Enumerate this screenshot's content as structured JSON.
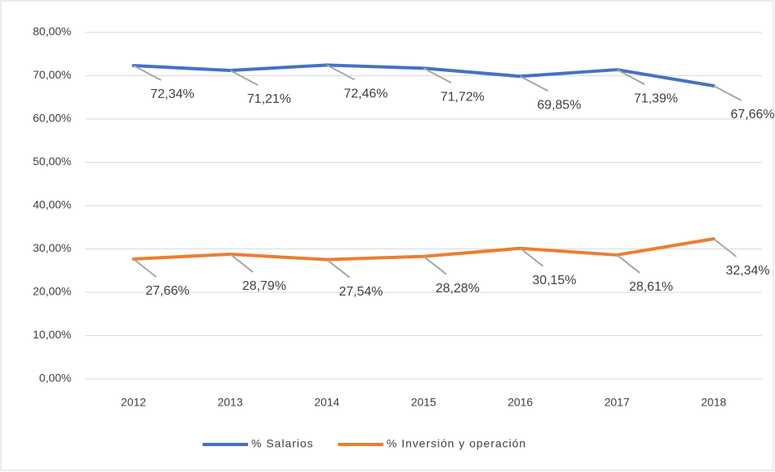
{
  "chart_data": {
    "type": "line",
    "categories": [
      "2012",
      "2013",
      "2014",
      "2015",
      "2016",
      "2017",
      "2018"
    ],
    "series": [
      {
        "name": "% Salarios",
        "color": "#4472c4",
        "values": [
          72.34,
          71.21,
          72.46,
          71.72,
          69.85,
          71.39,
          67.66
        ],
        "value_labels": [
          "72,34%",
          "71,21%",
          "72,46%",
          "71,72%",
          "69,85%",
          "71,39%",
          "67,66%"
        ]
      },
      {
        "name": "% Inversión y operación",
        "color": "#ed7d31",
        "values": [
          27.66,
          28.79,
          27.54,
          28.28,
          30.15,
          28.61,
          32.34
        ],
        "value_labels": [
          "27,66%",
          "28,79%",
          "27,54%",
          "28,28%",
          "30,15%",
          "28,61%",
          "32,34%"
        ]
      }
    ],
    "ylim": [
      0,
      80
    ],
    "yticks": [
      {
        "value": 0,
        "label": "0,00%"
      },
      {
        "value": 10,
        "label": "10,00%"
      },
      {
        "value": 20,
        "label": "20,00%"
      },
      {
        "value": 30,
        "label": "30,00%"
      },
      {
        "value": 40,
        "label": "40,00%"
      },
      {
        "value": 50,
        "label": "50,00%"
      },
      {
        "value": 60,
        "label": "60,00%"
      },
      {
        "value": 70,
        "label": "70,00%"
      },
      {
        "value": 80,
        "label": "80,00%"
      }
    ],
    "grid": true,
    "legend": "bottom"
  }
}
